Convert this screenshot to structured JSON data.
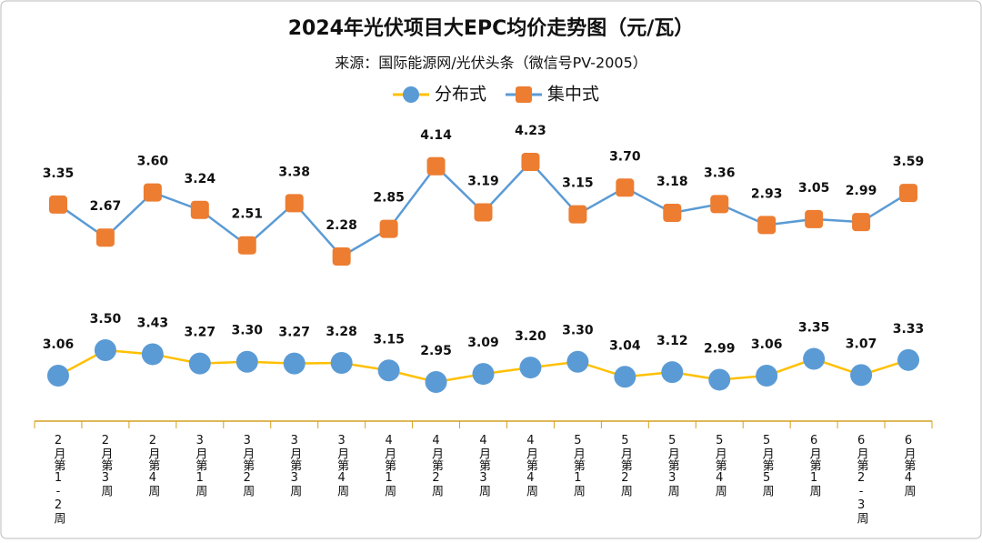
{
  "chart_data": {
    "type": "line",
    "title": "2024年光伏项目大EPC均价走势图（元/瓦）",
    "subtitle": "来源：国际能源网/光伏头条（微信号PV-2005）",
    "categories": [
      "2月第1-2周",
      "2月第3周",
      "2月第4周",
      "3月第1周",
      "3月第2周",
      "3月第3周",
      "3月第4周",
      "4月第1周",
      "4月第2周",
      "4月第3周",
      "4月第4周",
      "5月第1周",
      "5月第2周",
      "5月第3周",
      "5月第4周",
      "5月第5周",
      "6月第1周",
      "6月第2-3周",
      "6月第4周"
    ],
    "series": [
      {
        "name": "分布式",
        "color": "#5b9bd5",
        "line_color": "#ffc000",
        "marker": "circle",
        "values": [
          3.06,
          3.5,
          3.43,
          3.27,
          3.3,
          3.27,
          3.28,
          3.15,
          2.95,
          3.09,
          3.2,
          3.3,
          3.04,
          3.12,
          2.99,
          3.06,
          3.35,
          3.07,
          3.33
        ],
        "value_labels": [
          "3.06",
          "3.50",
          "3.43",
          "3.27",
          "3.30",
          "3.27",
          "3.28",
          "3.15",
          "2.95",
          "3.09",
          "3.20",
          "3.30",
          "3.04",
          "3.12",
          "2.99",
          "3.06",
          "3.35",
          "3.07",
          "3.33"
        ]
      },
      {
        "name": "集中式",
        "color": "#ed7d31",
        "line_color": "#5b9bd5",
        "marker": "square",
        "values": [
          3.35,
          2.67,
          3.6,
          3.24,
          2.51,
          3.38,
          2.28,
          2.85,
          4.14,
          3.19,
          4.23,
          3.15,
          3.7,
          3.18,
          3.36,
          2.93,
          3.05,
          2.99,
          3.59
        ],
        "value_labels": [
          "3.35",
          "2.67",
          "3.60",
          "3.24",
          "2.51",
          "3.38",
          "2.28",
          "2.85",
          "4.14",
          "3.19",
          "4.23",
          "3.15",
          "3.70",
          "3.18",
          "3.36",
          "2.93",
          "3.05",
          "2.99",
          "3.59"
        ]
      }
    ]
  }
}
